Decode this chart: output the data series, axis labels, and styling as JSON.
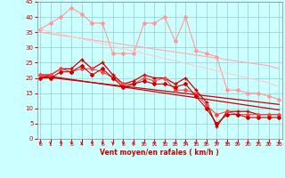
{
  "x": [
    0,
    1,
    2,
    3,
    4,
    5,
    6,
    7,
    8,
    9,
    10,
    11,
    12,
    13,
    14,
    15,
    16,
    17,
    18,
    19,
    20,
    21,
    22,
    23
  ],
  "series": [
    {
      "color": "#ff9999",
      "lw": 0.8,
      "marker": "D",
      "ms": 2.0,
      "data": [
        36,
        38,
        40,
        43,
        41,
        38,
        38,
        28,
        28,
        28,
        38,
        38,
        40,
        32,
        40,
        29,
        28,
        27,
        16,
        16,
        15,
        15,
        14,
        13
      ]
    },
    {
      "color": "#ffaaaa",
      "lw": 0.8,
      "marker": null,
      "ms": 0,
      "data": [
        35,
        34.5,
        34,
        33.5,
        33,
        32.5,
        32,
        31.5,
        31,
        30.5,
        30,
        29.5,
        29,
        28.5,
        28,
        27.5,
        27,
        26.5,
        26,
        25.5,
        25,
        24.5,
        24,
        23
      ]
    },
    {
      "color": "#ffcccc",
      "lw": 0.8,
      "marker": null,
      "ms": 0,
      "data": [
        36,
        35.2,
        34.4,
        33.6,
        32.8,
        32,
        31.2,
        30.4,
        29.6,
        28.8,
        28,
        27.2,
        26.4,
        25.6,
        24.8,
        24,
        23.2,
        22.4,
        21.6,
        20.8,
        20,
        19.2,
        18.4,
        17
      ]
    },
    {
      "color": "#cc0000",
      "lw": 0.9,
      "marker": "+",
      "ms": 3.5,
      "data": [
        21,
        21,
        23,
        23,
        26,
        23,
        25,
        21,
        18,
        19,
        21,
        20,
        20,
        18,
        20,
        16,
        12,
        4,
        9,
        9,
        9,
        8,
        8,
        8
      ]
    },
    {
      "color": "#cc0000",
      "lw": 0.9,
      "marker": null,
      "ms": 0,
      "data": [
        21,
        20.5,
        20.0,
        19.5,
        19.0,
        18.5,
        18.0,
        17.5,
        17.0,
        16.5,
        16.0,
        15.5,
        15.0,
        14.5,
        14.0,
        13.5,
        13.0,
        12.5,
        12.0,
        11.5,
        11.0,
        10.5,
        10.0,
        9.5
      ]
    },
    {
      "color": "#cc0000",
      "lw": 0.9,
      "marker": null,
      "ms": 0,
      "data": [
        20.5,
        20.1,
        19.7,
        19.3,
        18.9,
        18.5,
        18.1,
        17.7,
        17.3,
        16.9,
        16.5,
        16.1,
        15.7,
        15.3,
        14.9,
        14.5,
        14.1,
        13.7,
        13.3,
        12.9,
        12.5,
        12.1,
        11.7,
        11.3
      ]
    },
    {
      "color": "#ff4444",
      "lw": 0.8,
      "marker": "D",
      "ms": 2.0,
      "data": [
        21,
        21,
        23,
        22,
        23,
        23,
        22,
        20,
        18,
        18,
        20,
        19,
        20,
        16,
        16,
        15,
        11,
        8,
        9,
        8,
        8,
        8,
        8,
        8
      ]
    },
    {
      "color": "#cc0000",
      "lw": 0.8,
      "marker": "D",
      "ms": 2.0,
      "data": [
        20,
        20,
        22,
        22,
        24,
        21,
        23,
        20,
        17,
        18,
        19,
        18,
        18,
        17,
        18,
        14,
        10,
        5,
        8,
        8,
        7,
        7,
        7,
        7
      ]
    }
  ],
  "xlabel": "Vent moyen/en rafales ( km/h )",
  "xlim": [
    -0.3,
    23.3
  ],
  "ylim": [
    0,
    45
  ],
  "yticks": [
    0,
    5,
    10,
    15,
    20,
    25,
    30,
    35,
    40,
    45
  ],
  "xticks": [
    0,
    1,
    2,
    3,
    4,
    5,
    6,
    7,
    8,
    9,
    10,
    11,
    12,
    13,
    14,
    15,
    16,
    17,
    18,
    19,
    20,
    21,
    22,
    23
  ],
  "bg_color": "#ccffff",
  "grid_color": "#99cccc",
  "tick_color": "#cc0000",
  "label_color": "#cc0000",
  "axis_color": "#888888"
}
